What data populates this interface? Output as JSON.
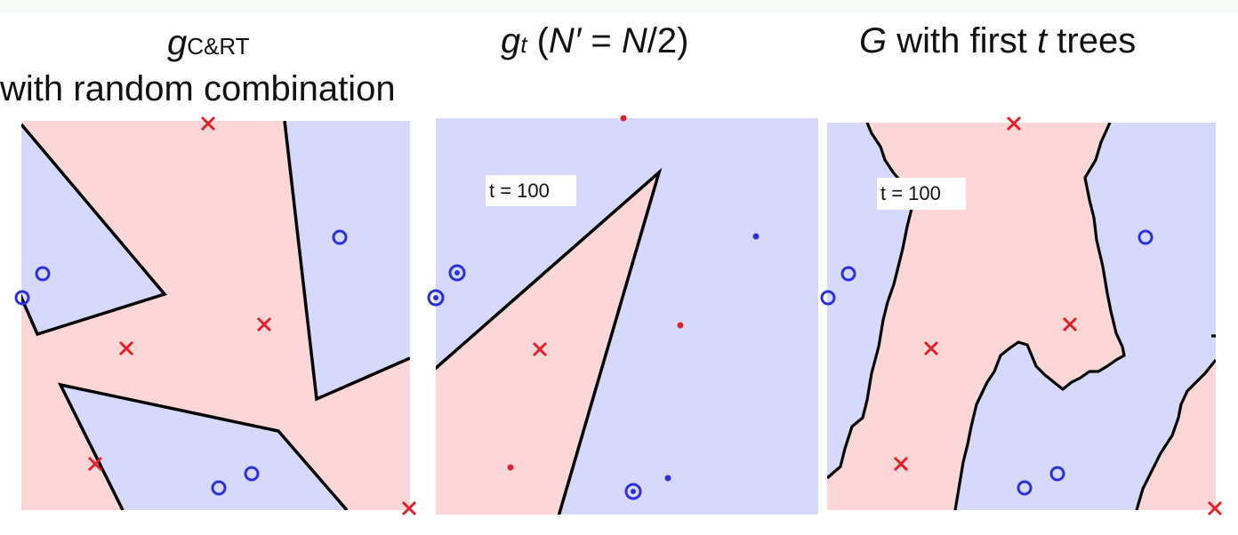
{
  "panels": [
    {
      "title_parts": {
        "g": "g",
        "sub": "C&RT"
      },
      "title_line2": "with random combination"
    },
    {
      "title_parts": {
        "g": "g",
        "sub": "t",
        "rest_open": " (",
        "nprime": "N′",
        "eq": " = ",
        "n": "N",
        "div": "/2)"
      },
      "t_label": "t = 100"
    },
    {
      "title_parts": {
        "G": "G",
        "mid": " with first ",
        "t": "t",
        "end": " trees"
      },
      "t_label": "t = 100"
    }
  ],
  "colors": {
    "pink_region": "#fdd6d8",
    "blue_region": "#d6d8fc",
    "x_marker": "#e3202a",
    "o_marker": "#2a30e0",
    "boundary": "#000000"
  }
}
